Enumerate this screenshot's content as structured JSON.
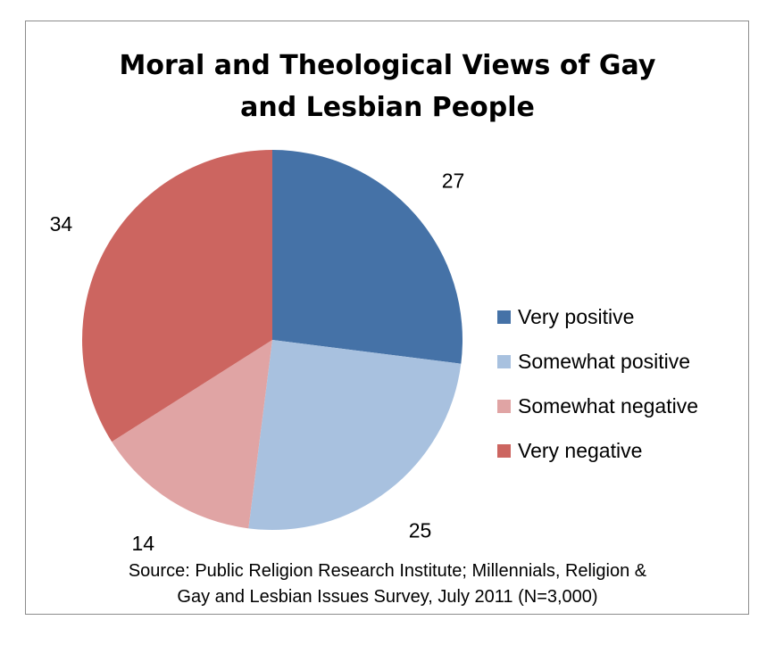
{
  "chart_data": {
    "type": "pie",
    "title_lines": [
      "Moral and Theological Views of Gay",
      "and Lesbian People"
    ],
    "categories": [
      "Very positive",
      "Somewhat positive",
      "Somewhat negative",
      "Very negative"
    ],
    "values": [
      27,
      25,
      14,
      34
    ],
    "data_labels": [
      "27",
      "25",
      "14",
      "34"
    ],
    "colors": [
      "#4572A7",
      "#A8C1DF",
      "#E0A4A4",
      "#CC6560"
    ],
    "legend_position": "right",
    "source_lines": [
      "Source: Public Religion Research Institute; Millennials, Religion &",
      "Gay and Lesbian Issues Survey, July 2011 (N=3,000)"
    ]
  }
}
